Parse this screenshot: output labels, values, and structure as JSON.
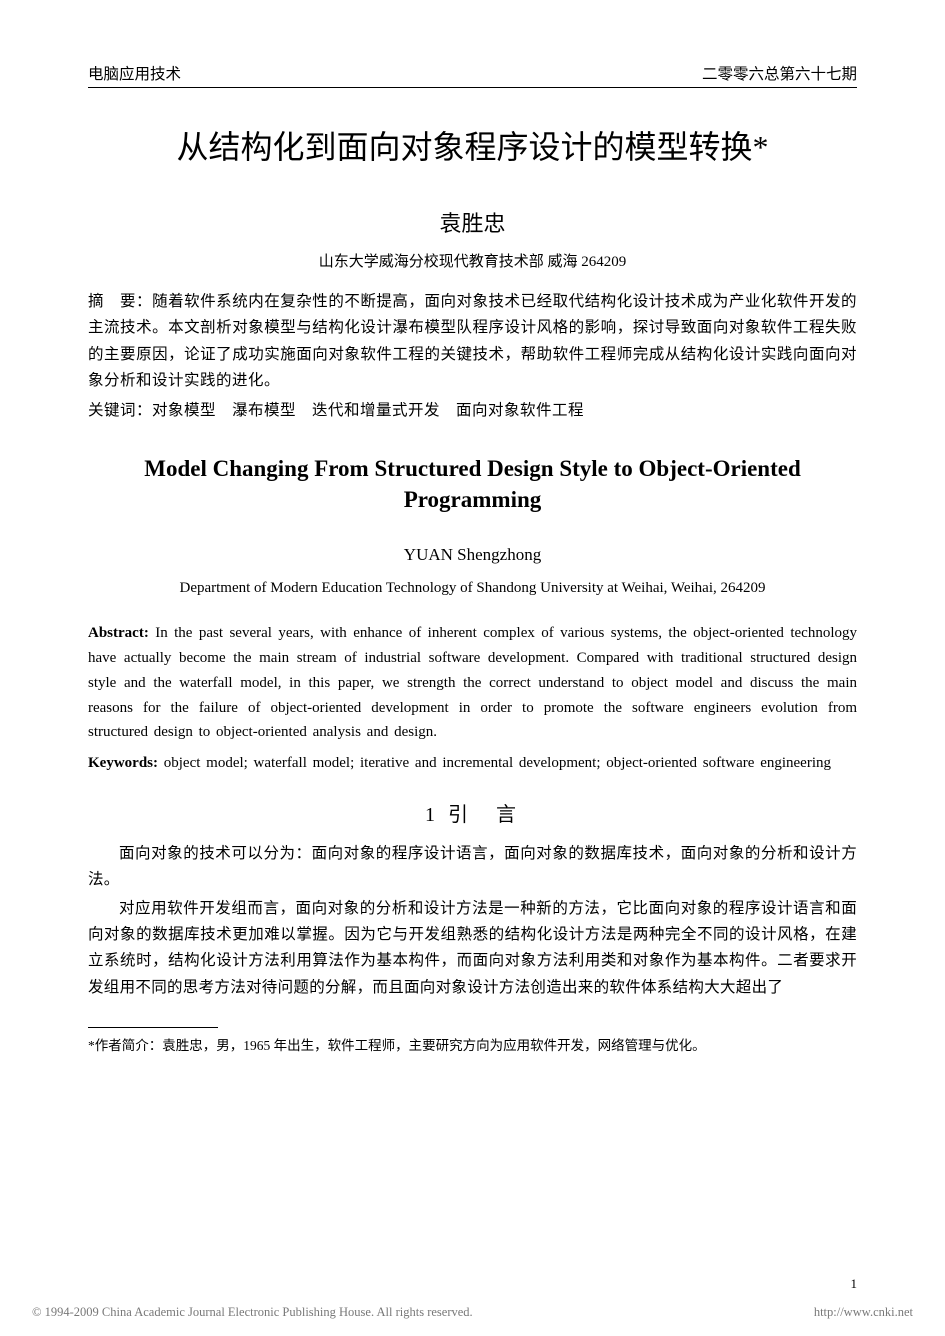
{
  "header": {
    "left": "电脑应用技术",
    "right": "二零零六总第六十七期"
  },
  "title_cn": "从结构化到面向对象程序设计的模型转换*",
  "author_cn": "袁胜忠",
  "affiliation_cn": "山东大学威海分校现代教育技术部  威海 264209",
  "abstract_cn_label": "摘　要：",
  "abstract_cn": "随着软件系统内在复杂性的不断提高，面向对象技术已经取代结构化设计技术成为产业化软件开发的主流技术。本文剖析对象模型与结构化设计瀑布模型队程序设计风格的影响，探讨导致面向对象软件工程失败的主要原因，论证了成功实施面向对象软件工程的关键技术，帮助软件工程师完成从结构化设计实践向面向对象分析和设计实践的进化。",
  "keywords_cn_label": "关键词：",
  "keywords_cn": "对象模型　瀑布模型　迭代和增量式开发　面向对象软件工程",
  "title_en": "Model Changing From Structured Design Style to Object-Oriented Programming",
  "author_en": "YUAN Shengzhong",
  "affiliation_en": "Department of Modern Education Technology of Shandong University at Weihai, Weihai, 264209",
  "abstract_en_label": "Abstract:",
  "abstract_en": " In the past several years, with enhance of inherent complex of various systems, the object-oriented technology have actually become the main stream of industrial software development. Compared with traditional structured design style and the waterfall model, in this paper, we strength the correct understand to object model and discuss the main reasons for the failure of object-oriented development in order to promote the software engineers evolution from structured design to object-oriented analysis and design.",
  "keywords_en_label": "Keywords:",
  "keywords_en": "   object model; waterfall model; iterative and incremental development; object-oriented software engineering",
  "section1_heading": "1 引　言",
  "body_p1": "面向对象的技术可以分为：面向对象的程序设计语言，面向对象的数据库技术，面向对象的分析和设计方法。",
  "body_p2": "对应用软件开发组而言，面向对象的分析和设计方法是一种新的方法，它比面向对象的程序设计语言和面向对象的数据库技术更加难以掌握。因为它与开发组熟悉的结构化设计方法是两种完全不同的设计风格，在建立系统时，结构化设计方法利用算法作为基本构件，而面向对象方法利用类和对象作为基本构件。二者要求开发组用不同的思考方法对待问题的分解，而且面向对象设计方法创造出来的软件体系结构大大超出了",
  "footnote_label": "*作者简介：",
  "footnote_text": "袁胜忠，男，1965 年出生，软件工程师，主要研究方向为应用软件开发，网络管理与优化。",
  "page_number": "1",
  "copyright_left": "© 1994-2009 China Academic Journal Electronic Publishing House. All rights reserved.",
  "copyright_right": "http://www.cnki.net"
}
